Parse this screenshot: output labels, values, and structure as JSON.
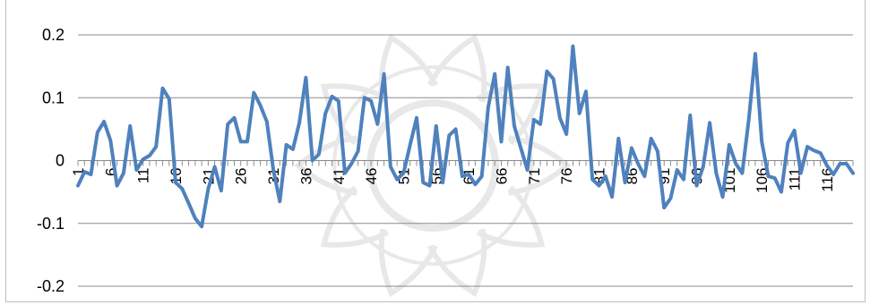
{
  "chart_data": {
    "type": "line",
    "title": "",
    "xlabel": "",
    "ylabel": "",
    "ylim": [
      -0.2,
      0.2
    ],
    "ytick_values": [
      -0.2,
      -0.1,
      0,
      0.1,
      0.2
    ],
    "ytick_labels": [
      "-0.2",
      "-0.1",
      "0",
      "0.1",
      "0.2"
    ],
    "xtick_labels": [
      "1",
      "6",
      "11",
      "16",
      "21",
      "26",
      "31",
      "36",
      "41",
      "46",
      "51",
      "56",
      "61",
      "66",
      "71",
      "76",
      "81",
      "86",
      "91",
      "96",
      "101",
      "106",
      "111",
      "116"
    ],
    "grid": "horizontal",
    "legend": "none",
    "series": [
      {
        "color": "#4f81bd",
        "x": [
          1,
          2,
          3,
          4,
          5,
          6,
          7,
          8,
          9,
          10,
          11,
          12,
          13,
          14,
          15,
          16,
          17,
          18,
          19,
          20,
          21,
          22,
          23,
          24,
          25,
          26,
          27,
          28,
          29,
          30,
          31,
          32,
          33,
          34,
          35,
          36,
          37,
          38,
          39,
          40,
          41,
          42,
          43,
          44,
          45,
          46,
          47,
          48,
          49,
          50,
          51,
          52,
          53,
          54,
          55,
          56,
          57,
          58,
          59,
          60,
          61,
          62,
          63,
          64,
          65,
          66,
          67,
          68,
          69,
          70,
          71,
          72,
          73,
          74,
          75,
          76,
          77,
          78,
          79,
          80,
          81,
          82,
          83,
          84,
          85,
          86,
          87,
          88,
          89,
          90,
          91,
          92,
          93,
          94,
          95,
          96,
          97,
          98,
          99,
          100,
          101,
          102,
          103,
          104,
          105,
          106,
          107,
          108,
          109,
          110,
          111,
          112,
          113,
          114,
          115,
          116,
          117,
          118,
          119,
          120
        ],
        "values": [
          -0.04,
          -0.018,
          -0.022,
          0.045,
          0.062,
          0.032,
          -0.04,
          -0.02,
          0.055,
          -0.015,
          0.002,
          0.008,
          0.022,
          0.115,
          0.098,
          -0.035,
          -0.045,
          -0.068,
          -0.092,
          -0.105,
          -0.045,
          -0.01,
          -0.048,
          0.058,
          0.068,
          0.03,
          0.03,
          0.108,
          0.088,
          0.062,
          -0.015,
          -0.065,
          0.025,
          0.018,
          0.06,
          0.132,
          0.0,
          0.01,
          0.075,
          0.102,
          0.095,
          -0.02,
          -0.005,
          0.015,
          0.1,
          0.095,
          0.058,
          0.138,
          -0.01,
          -0.03,
          -0.02,
          0.025,
          0.068,
          -0.035,
          -0.04,
          0.055,
          -0.035,
          0.04,
          0.05,
          -0.025,
          -0.022,
          -0.038,
          -0.025,
          0.085,
          0.138,
          0.03,
          0.148,
          0.055,
          0.02,
          -0.015,
          0.065,
          0.058,
          0.142,
          0.13,
          0.068,
          0.042,
          0.182,
          0.075,
          0.11,
          -0.03,
          -0.04,
          -0.025,
          -0.058,
          0.035,
          -0.035,
          0.02,
          -0.005,
          -0.025,
          0.035,
          0.015,
          -0.075,
          -0.06,
          -0.015,
          -0.03,
          0.072,
          -0.04,
          -0.01,
          0.06,
          -0.02,
          -0.058,
          0.025,
          -0.005,
          -0.02,
          0.065,
          0.17,
          0.03,
          -0.025,
          -0.028,
          -0.05,
          0.028,
          0.048,
          -0.02,
          0.022,
          0.016,
          0.012,
          -0.008,
          -0.022,
          -0.005,
          -0.005,
          -0.02
        ]
      }
    ]
  }
}
